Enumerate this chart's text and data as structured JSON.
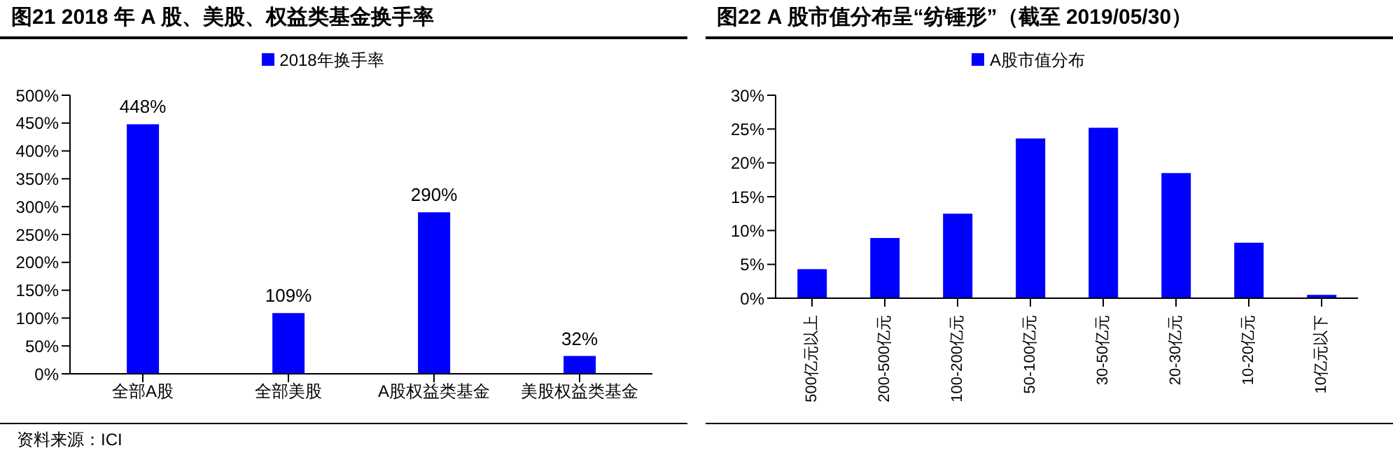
{
  "chart_data": [
    {
      "type": "bar",
      "title": "图21 2018 年 A 股、美股、权益类基金换手率",
      "categories": [
        "全部A股",
        "全部美股",
        "A股权益类基金",
        "美股权益类基金"
      ],
      "series": [
        {
          "name": "2018年换手率",
          "color": "#0000ff",
          "values": [
            448,
            109,
            290,
            32
          ],
          "value_labels": [
            "448%",
            "109%",
            "290%",
            "32%"
          ]
        }
      ],
      "ylim": [
        0,
        500
      ],
      "yticks": [
        {
          "value": 0,
          "label": "0%"
        },
        {
          "value": 50,
          "label": "50%"
        },
        {
          "value": 100,
          "label": "100%"
        },
        {
          "value": 150,
          "label": "150%"
        },
        {
          "value": 200,
          "label": "200%"
        },
        {
          "value": 250,
          "label": "250%"
        },
        {
          "value": 300,
          "label": "300%"
        },
        {
          "value": 350,
          "label": "350%"
        },
        {
          "value": 400,
          "label": "400%"
        },
        {
          "value": 450,
          "label": "450%"
        },
        {
          "value": 500,
          "label": "500%"
        }
      ],
      "grid": false,
      "legend": "top",
      "annotations": [
        "资料来源：ICI"
      ]
    },
    {
      "type": "bar",
      "title": "图22 A 股市值分布呈“纺锤形”（截至 2019/05/30）",
      "categories": [
        "500亿元以上",
        "200-500亿元",
        "100-200亿元",
        "50-100亿元",
        "30-50亿元",
        "20-30亿元",
        "10-20亿元",
        "10亿元以下"
      ],
      "series": [
        {
          "name": "A股市值分布",
          "color": "#0000ff",
          "values": [
            4.3,
            8.9,
            12.5,
            23.6,
            25.2,
            18.5,
            8.2,
            0.5
          ]
        }
      ],
      "ylim": [
        0,
        30
      ],
      "yticks": [
        {
          "value": 0,
          "label": "0%"
        },
        {
          "value": 5,
          "label": "5%"
        },
        {
          "value": 10,
          "label": "10%"
        },
        {
          "value": 15,
          "label": "15%"
        },
        {
          "value": 20,
          "label": "20%"
        },
        {
          "value": 25,
          "label": "25%"
        },
        {
          "value": 30,
          "label": "30%"
        }
      ],
      "grid": false,
      "legend": "top"
    }
  ]
}
